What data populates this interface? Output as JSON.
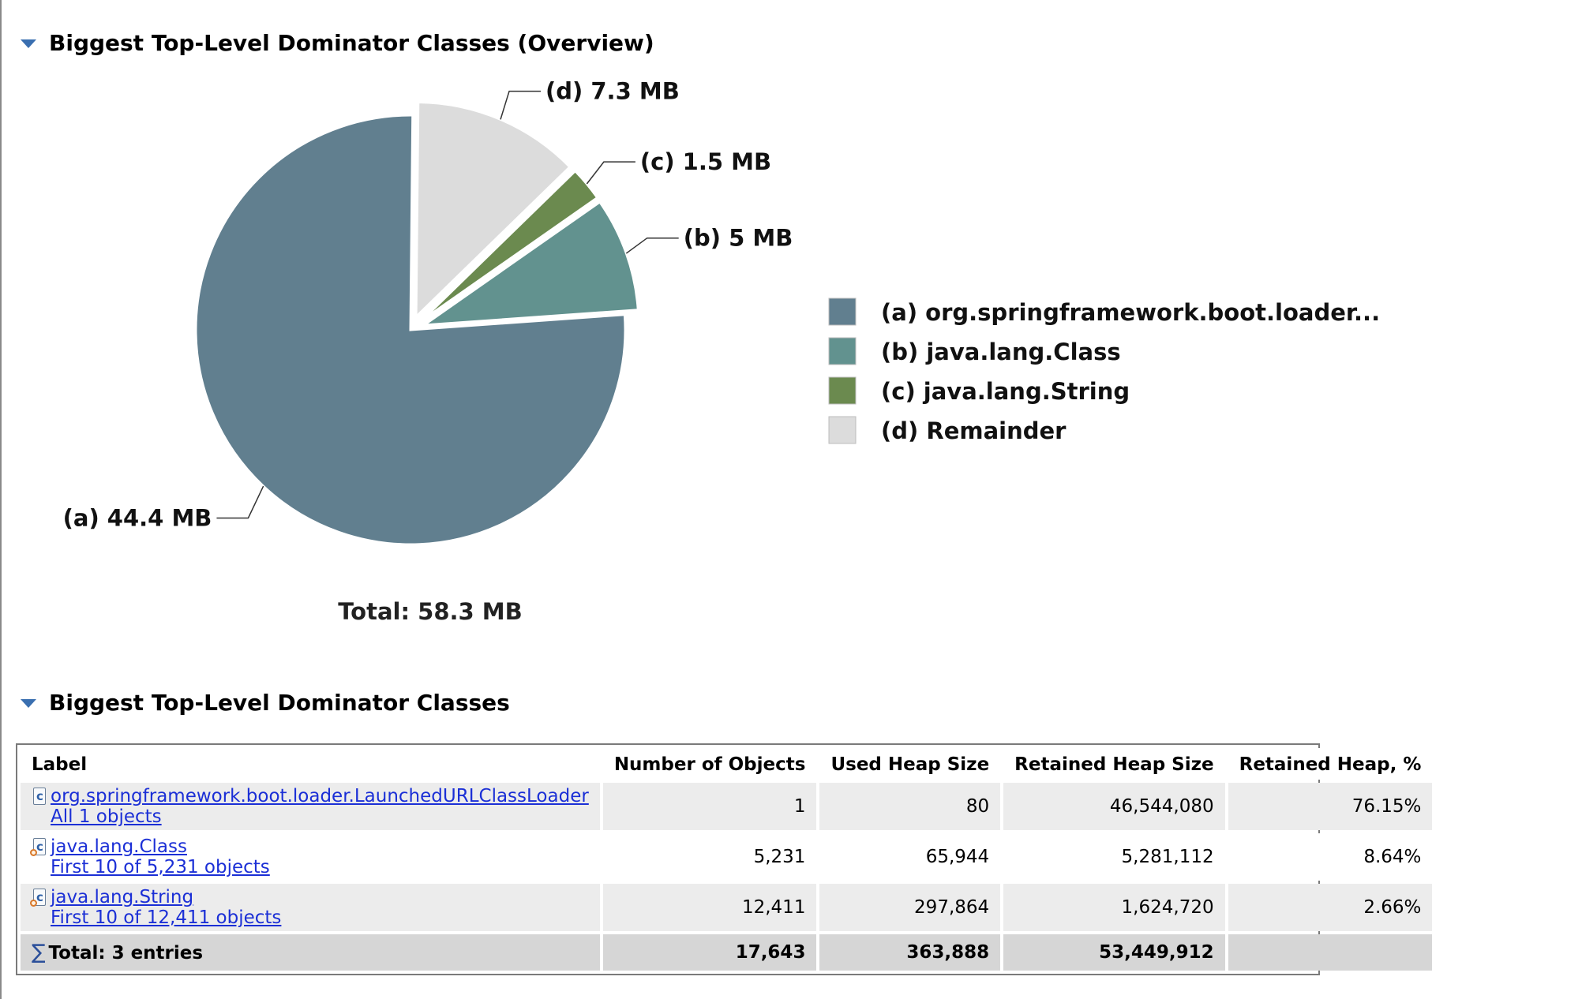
{
  "sections": {
    "overview": {
      "title": "Biggest Top-Level Dominator Classes (Overview)"
    },
    "table_section": {
      "title": "Biggest Top-Level Dominator Classes"
    }
  },
  "chart_data": {
    "type": "pie",
    "title": "",
    "unit": "MB",
    "slices": [
      {
        "key": "(a)",
        "label": "org.springframework.boot.loader...",
        "value": 44.4,
        "value_label": "44.4 MB",
        "color": "#617f8f",
        "exploded": false
      },
      {
        "key": "(b)",
        "label": "java.lang.Class",
        "value": 5,
        "value_label": "5 MB",
        "color": "#62928f",
        "exploded": true
      },
      {
        "key": "(c)",
        "label": "java.lang.String",
        "value": 1.5,
        "value_label": "1.5 MB",
        "color": "#6b8a4f",
        "exploded": true
      },
      {
        "key": "(d)",
        "label": "Remainder",
        "value": 7.3,
        "value_label": "7.3 MB",
        "color": "#dcdcdc",
        "exploded": true
      }
    ],
    "total_label": "Total: 58.3 MB",
    "legend": "right"
  },
  "table": {
    "columns": [
      "Label",
      "Number of Objects",
      "Used Heap Size",
      "Retained Heap Size",
      "Retained Heap, %"
    ],
    "rows": [
      {
        "class_name": "org.springframework.boot.loader.LaunchedURLClassLoader",
        "objects_link": "All 1 objects",
        "icon": "class-icon",
        "objects": "1",
        "used_heap": "80",
        "retained_heap": "46,544,080",
        "retained_pct": "76.15%"
      },
      {
        "class_name": "java.lang.Class",
        "objects_link": "First 10 of 5,231 objects",
        "icon": "class-instance-icon",
        "objects": "5,231",
        "used_heap": "65,944",
        "retained_heap": "5,281,112",
        "retained_pct": "8.64%"
      },
      {
        "class_name": "java.lang.String",
        "objects_link": "First 10 of 12,411 objects",
        "icon": "class-instance-icon",
        "objects": "12,411",
        "used_heap": "297,864",
        "retained_heap": "1,624,720",
        "retained_pct": "2.66%"
      }
    ],
    "total": {
      "icon": "sigma-icon",
      "label": "Total: 3 entries",
      "objects": "17,643",
      "used_heap": "363,888",
      "retained_heap": "53,449,912",
      "retained_pct": ""
    }
  }
}
